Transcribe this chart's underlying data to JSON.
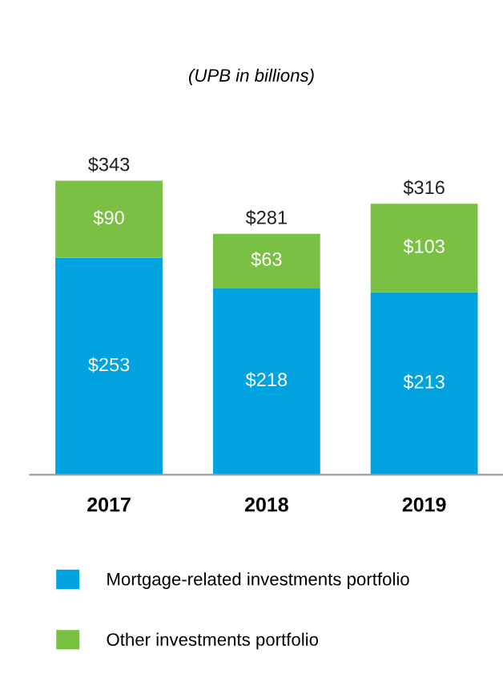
{
  "chart_data": {
    "type": "bar",
    "stacked": true,
    "subtitle": "(UPB in billions)",
    "categories": [
      "2017",
      "2018",
      "2019"
    ],
    "series": [
      {
        "name": "Mortgage-related investments portfolio",
        "color": "#00a3e0",
        "values": [
          253,
          218,
          213
        ],
        "value_labels": [
          "$253",
          "$218",
          "$213"
        ]
      },
      {
        "name": "Other investments portfolio",
        "color": "#7ac143",
        "values": [
          90,
          63,
          103
        ],
        "value_labels": [
          "$90",
          "$63",
          "$103"
        ]
      }
    ],
    "totals": [
      "$343",
      "$281",
      "$316"
    ],
    "legend": "bottom",
    "grid": false,
    "tick_labels": "x"
  }
}
